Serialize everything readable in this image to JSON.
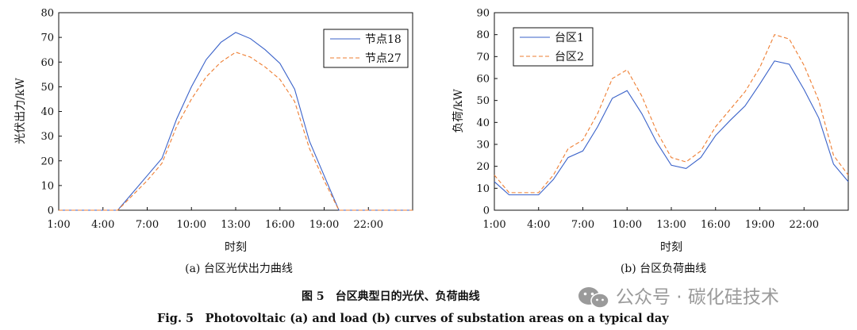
{
  "figure": {
    "caption_cn": "图 5　台区典型日的光伏、负荷曲线",
    "caption_en": "Fig. 5　Photovoltaic (a) and load (b) curves of substation areas on a typical day",
    "watermark": "公众号 · 碳化硅技术",
    "watermark_icon": "wechat-icon"
  },
  "chart_data": [
    {
      "type": "line",
      "subtitle": "(a) 台区光伏出力曲线",
      "xlabel": "时刻",
      "ylabel": "光伏出力/kW",
      "xlim": [
        1,
        25
      ],
      "ylim": [
        0,
        80
      ],
      "xticks": [
        1,
        4,
        7,
        10,
        13,
        16,
        19,
        22
      ],
      "xtick_labels": [
        "1:00",
        "4:00",
        "7:00",
        "10:00",
        "13:00",
        "16:00",
        "19:00",
        "22:00"
      ],
      "yticks": [
        0,
        10,
        20,
        30,
        40,
        50,
        60,
        70,
        80
      ],
      "ytick_labels": [
        "0",
        "10",
        "20",
        "30",
        "40",
        "50",
        "60",
        "70",
        "80"
      ],
      "legend": "top-right",
      "x": [
        1,
        2,
        3,
        4,
        5,
        6,
        7,
        8,
        9,
        10,
        11,
        12,
        13,
        14,
        15,
        16,
        17,
        18,
        19,
        20,
        21,
        22,
        23,
        24,
        25
      ],
      "series": [
        {
          "name": "节点18",
          "color": "#3a62c9",
          "dash": "solid",
          "values": [
            0,
            0,
            0,
            0,
            0,
            7,
            14,
            21,
            37,
            50,
            61,
            68,
            72,
            69.5,
            65,
            59.5,
            49,
            28,
            14,
            0,
            0,
            0,
            0,
            0,
            0
          ]
        },
        {
          "name": "节点27",
          "color": "#ee7d31",
          "dash": "dashed",
          "values": [
            0,
            0,
            0,
            0,
            0,
            6,
            12,
            19,
            34,
            45,
            54,
            60,
            64,
            62,
            58,
            53,
            44,
            25,
            12,
            0,
            0,
            0,
            0,
            0,
            0
          ]
        }
      ]
    },
    {
      "type": "line",
      "subtitle": "(b) 台区负荷曲线",
      "xlabel": "时刻",
      "ylabel": "负荷/kW",
      "xlim": [
        1,
        25
      ],
      "ylim": [
        0,
        90
      ],
      "xticks": [
        1,
        4,
        7,
        10,
        13,
        16,
        19,
        22
      ],
      "xtick_labels": [
        "1:00",
        "4:00",
        "7:00",
        "10:00",
        "13:00",
        "16:00",
        "19:00",
        "22:00"
      ],
      "yticks": [
        0,
        10,
        20,
        30,
        40,
        50,
        60,
        70,
        80,
        90
      ],
      "ytick_labels": [
        "0",
        "10",
        "20",
        "30",
        "40",
        "50",
        "60",
        "70",
        "80",
        "90"
      ],
      "legend": "top-left",
      "x": [
        1,
        2,
        3,
        4,
        5,
        6,
        7,
        8,
        9,
        10,
        11,
        12,
        13,
        14,
        15,
        16,
        17,
        18,
        19,
        20,
        21,
        22,
        23,
        24,
        25
      ],
      "series": [
        {
          "name": "台区1",
          "color": "#3a62c9",
          "dash": "solid",
          "values": [
            13,
            7,
            7,
            7,
            14,
            24,
            27,
            38,
            51,
            54.5,
            44,
            31,
            20.5,
            19,
            24,
            34,
            41,
            47.5,
            57.5,
            68,
            66.5,
            55,
            42,
            21,
            13
          ]
        },
        {
          "name": "台区2",
          "color": "#ee7d31",
          "dash": "dashed",
          "values": [
            16,
            8,
            8,
            8,
            16,
            28,
            32,
            44,
            60,
            64,
            52,
            36,
            24,
            22,
            27,
            38,
            46,
            54,
            65,
            80,
            78,
            66,
            50,
            25,
            16
          ]
        }
      ]
    }
  ]
}
